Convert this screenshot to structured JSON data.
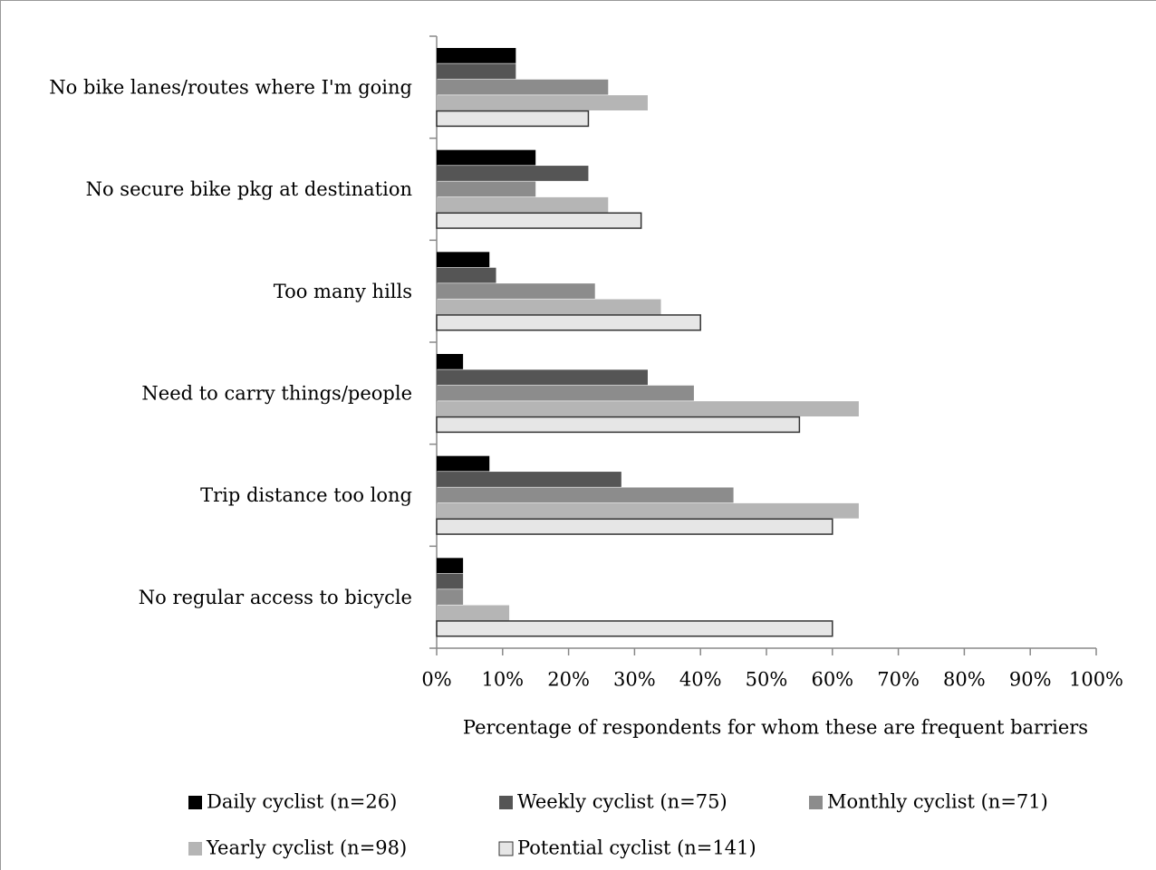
{
  "chart_data": {
    "type": "bar",
    "orientation": "horizontal",
    "x_label": "Percentage of respondents for whom these are frequent barriers",
    "categories": [
      "No bike lanes/routes where I'm going",
      "No secure bike pkg at destination",
      "Too many hills",
      "Need to carry things/people",
      "Trip distance too long",
      "No regular access to bicycle"
    ],
    "series": [
      {
        "name": "Daily cyclist (n=26)",
        "color": "#000000",
        "values": [
          12,
          15,
          8,
          4,
          8,
          4
        ]
      },
      {
        "name": "Weekly cyclist (n=75)",
        "color": "#555555",
        "values": [
          12,
          23,
          9,
          32,
          28,
          4
        ]
      },
      {
        "name": "Monthly cyclist (n=71)",
        "color": "#8c8c8c",
        "values": [
          26,
          15,
          24,
          39,
          45,
          4
        ]
      },
      {
        "name": "Yearly cyclist (n=98)",
        "color": "#b5b5b5",
        "values": [
          32,
          26,
          34,
          64,
          64,
          11
        ]
      },
      {
        "name": "Potential cyclist (n=141)",
        "color": "#e6e6e6",
        "values": [
          23,
          31,
          40,
          55,
          60,
          60
        ]
      }
    ],
    "xlim": [
      0,
      100
    ],
    "xticks": [
      {
        "value": 0,
        "label": "0%"
      },
      {
        "value": 10,
        "label": "10%"
      },
      {
        "value": 20,
        "label": "20%"
      },
      {
        "value": 30,
        "label": "30%"
      },
      {
        "value": 40,
        "label": "40%"
      },
      {
        "value": 50,
        "label": "50%"
      },
      {
        "value": 60,
        "label": "60%"
      },
      {
        "value": 70,
        "label": "70%"
      },
      {
        "value": 80,
        "label": "80%"
      },
      {
        "value": 90,
        "label": "90%"
      },
      {
        "value": 100,
        "label": "100%"
      }
    ],
    "grid": false,
    "legend": "bottom"
  }
}
